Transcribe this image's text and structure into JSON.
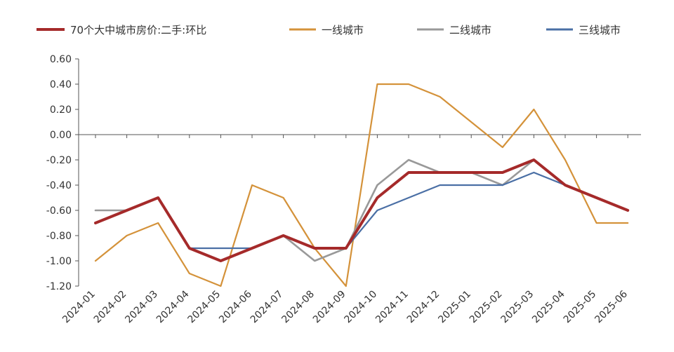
{
  "chart_data": {
    "type": "line",
    "title": "",
    "xlabel": "",
    "ylabel": "",
    "ylim": [
      -1.2,
      0.6
    ],
    "yticks": [
      0.6,
      0.4,
      0.2,
      0.0,
      -0.2,
      -0.4,
      -0.6,
      -0.8,
      -1.0,
      -1.2
    ],
    "ytick_labels": [
      "0.60",
      "0.40",
      "0.20",
      "0.00",
      "-0.20",
      "-0.40",
      "-0.60",
      "-0.80",
      "-1.00",
      "-1.20"
    ],
    "categories": [
      "2024-01",
      "2024-02",
      "2024-03",
      "2024-04",
      "2024-05",
      "2024-06",
      "2024-07",
      "2024-08",
      "2024-09",
      "2024-10",
      "2024-11",
      "2024-12",
      "2025-01",
      "2025-02",
      "2025-03",
      "2025-04",
      "2025-05",
      "2025-06"
    ],
    "grid": false,
    "legend_position": "top",
    "series": [
      {
        "name": "70个大中城市房价:二手:环比",
        "color": "#a52a2a",
        "values": [
          -0.7,
          -0.6,
          -0.5,
          -0.9,
          -1.0,
          -0.9,
          -0.8,
          -0.9,
          -0.9,
          -0.5,
          -0.3,
          -0.3,
          -0.3,
          -0.3,
          -0.2,
          -0.4,
          -0.5,
          -0.6
        ]
      },
      {
        "name": "一线城市",
        "color": "#d4923a",
        "values": [
          -1.0,
          -0.8,
          -0.7,
          -1.1,
          -1.2,
          -0.4,
          -0.5,
          -0.9,
          -1.2,
          0.4,
          0.4,
          0.3,
          0.1,
          -0.1,
          0.2,
          -0.2,
          -0.7,
          -0.7
        ]
      },
      {
        "name": "二线城市",
        "color": "#999999",
        "values": [
          -0.6,
          -0.6,
          -0.5,
          -0.9,
          -1.0,
          -0.9,
          -0.8,
          -1.0,
          -0.9,
          -0.4,
          -0.2,
          -0.3,
          -0.3,
          -0.4,
          -0.2,
          -0.4,
          -0.5,
          -0.6
        ]
      },
      {
        "name": "三线城市",
        "color": "#4a6fa5",
        "values": [
          -0.7,
          -0.6,
          -0.5,
          -0.9,
          -0.9,
          -0.9,
          -0.8,
          -0.9,
          -0.9,
          -0.6,
          -0.5,
          -0.4,
          -0.4,
          -0.4,
          -0.3,
          -0.4,
          -0.5,
          -0.6
        ]
      }
    ]
  }
}
